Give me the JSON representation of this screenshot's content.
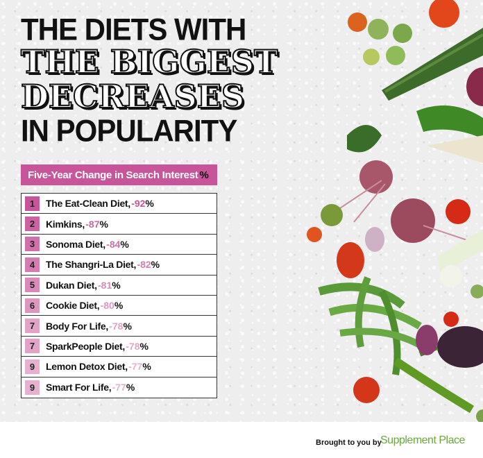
{
  "title": {
    "line1": "THE DIETS WITH",
    "line2": "THE BIGGEST",
    "line3": "DECREASES",
    "line4": "IN POPULARITY"
  },
  "subtitle": {
    "text": "Five-Year Change in Search Interest",
    "unit": "%"
  },
  "rows": [
    {
      "rank": "1",
      "name": "The Eat-Clean Diet",
      "value": "-92",
      "unit": "%",
      "color": "#c8559a"
    },
    {
      "rank": "2",
      "name": "Kimkins",
      "value": "-87",
      "unit": "%",
      "color": "#cc63a1"
    },
    {
      "rank": "3",
      "name": "Sonoma Diet",
      "value": "-84",
      "unit": "%",
      "color": "#d070a9"
    },
    {
      "rank": "4",
      "name": "The Shangri-La Diet",
      "value": "-82",
      "unit": "%",
      "color": "#d47db0"
    },
    {
      "rank": "5",
      "name": "Dukan Diet",
      "value": "-81",
      "unit": "%",
      "color": "#d98ab8"
    },
    {
      "rank": "6",
      "name": "Cookie Diet",
      "value": "-80",
      "unit": "%",
      "color": "#dd97bf"
    },
    {
      "rank": "7",
      "name": "Body For Life",
      "value": "-78",
      "unit": "%",
      "color": "#e1a4c7"
    },
    {
      "rank": "7",
      "name": "SparkPeople Diet",
      "value": "-78",
      "unit": "%",
      "color": "#e1a4c7"
    },
    {
      "rank": "9",
      "name": "Lemon Detox Diet",
      "value": "-77",
      "unit": "%",
      "color": "#e6b1ce"
    },
    {
      "rank": "9",
      "name": "Smart For Life",
      "value": "-77",
      "unit": "%",
      "color": "#e6b1ce"
    }
  ],
  "footer": {
    "brought": "Brought to you by",
    "brand": "Supplement Place"
  },
  "colors": {
    "accent": "#c8559a",
    "brand": "#6aa83b"
  }
}
